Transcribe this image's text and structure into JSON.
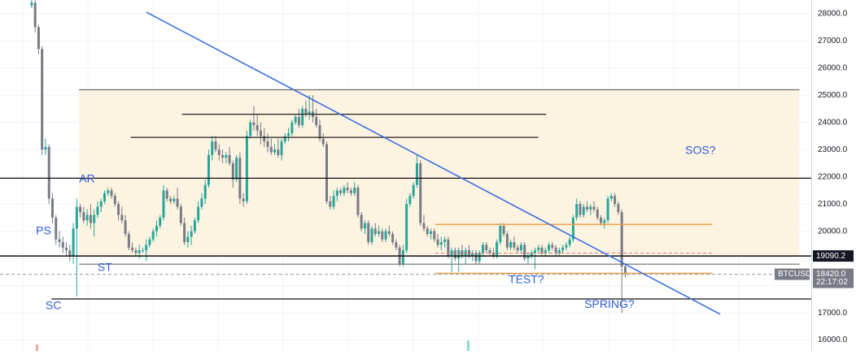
{
  "chart_data": {
    "type": "candlestick",
    "symbol": "BTCUSD",
    "y_axis": {
      "position": "right",
      "range": [
        15600,
        28500
      ],
      "ticks": [
        16000,
        17000,
        18000,
        19000,
        20000,
        21000,
        22000,
        23000,
        24000,
        25000,
        26000,
        27000,
        28000
      ],
      "tick_labels": [
        "16000.0",
        "17000.0",
        "18000.0",
        "19000.0",
        "20000.0",
        "21000.0",
        "22000.0",
        "23000.0",
        "24000.0",
        "25000.0",
        "26000.0",
        "27000.0",
        "28000.0"
      ]
    },
    "x_range": [
      0,
      205
    ],
    "price_tags": [
      {
        "label": "19090.2",
        "value": 19090.2,
        "bg": "#131722",
        "fg": "#ffffff"
      },
      {
        "label": "BTCUSD",
        "value": 18420.0,
        "bg": "#787b86",
        "fg": "#ffffff"
      },
      {
        "label": "18420.0",
        "value": 18420.0,
        "bg": "#787b86",
        "fg": "#ffffff"
      },
      {
        "label": "22:17:02",
        "value": 18120.0,
        "bg": "#787b86",
        "fg": "#ffffff"
      }
    ],
    "trading_range": {
      "x1": 20,
      "x2": 202,
      "high": 25200,
      "low": 19050,
      "color": "#fdf3e1"
    },
    "horizontal_levels": [
      {
        "x1": 20,
        "x2": 202,
        "y": 25200,
        "color": "#6b6b6b",
        "width": 1.2
      },
      {
        "x1": 46,
        "x2": 138,
        "y": 24300,
        "color": "#222222",
        "width": 1.2
      },
      {
        "x1": 33,
        "x2": 136,
        "y": 23450,
        "color": "#222222",
        "width": 1.2
      },
      {
        "x1": 0,
        "x2": 205,
        "y": 21950,
        "color": "#111111",
        "width": 1.3
      },
      {
        "x1": 0,
        "x2": 205,
        "y": 19090,
        "color": "#111111",
        "width": 1.5
      },
      {
        "x1": 20,
        "x2": 202,
        "y": 18790,
        "color": "#6b6b6b",
        "width": 1.2
      },
      {
        "x1": 13,
        "x2": 205,
        "y": 17510,
        "color": "#111111",
        "width": 1.3
      },
      {
        "x1": 110,
        "x2": 180,
        "y": 20250,
        "color": "#f0a04b",
        "width": 1.5
      },
      {
        "x1": 110,
        "x2": 180,
        "y": 18450,
        "color": "#f0a04b",
        "width": 1.5
      }
    ],
    "dashed_levels": [
      {
        "x1": 110,
        "x2": 180,
        "y": 19200,
        "color": "#d08080"
      },
      {
        "x1": 0,
        "x2": 205,
        "y": 18420,
        "color": "#999999"
      }
    ],
    "trendline": {
      "x1": 37,
      "y1": 28050,
      "x2": 182,
      "y2": 16950,
      "color": "#3a6fe0"
    },
    "annotations": [
      {
        "text": "PS",
        "x": 11,
        "y": 20000
      },
      {
        "text": "SC",
        "x": 13.5,
        "y": 17250
      },
      {
        "text": "AR",
        "x": 22,
        "y": 21900
      },
      {
        "text": "ST",
        "x": 26.5,
        "y": 18650
      },
      {
        "text": "SOS?",
        "x": 177,
        "y": 22950
      },
      {
        "text": "TEST?",
        "x": 133,
        "y": 18200
      },
      {
        "text": "SPRING?",
        "x": 154,
        "y": 17300
      }
    ],
    "candles": [
      [
        28300,
        28500,
        28200,
        28400
      ],
      [
        28400,
        28500,
        27300,
        27500
      ],
      [
        27500,
        27600,
        26500,
        26700
      ],
      [
        26700,
        26800,
        22800,
        23000
      ],
      [
        23000,
        23400,
        22800,
        23100
      ],
      [
        23100,
        23200,
        21000,
        21200
      ],
      [
        21200,
        21400,
        20300,
        20500
      ],
      [
        20500,
        20600,
        19500,
        19700
      ],
      [
        19700,
        20000,
        19400,
        19600
      ],
      [
        19600,
        19800,
        19200,
        19400
      ],
      [
        19400,
        19600,
        19100,
        19300
      ],
      [
        19300,
        19500,
        18900,
        19100
      ],
      [
        19100,
        20300,
        18800,
        20100
      ],
      [
        20100,
        21200,
        17600,
        20900
      ],
      [
        20900,
        21000,
        20500,
        20700
      ],
      [
        20700,
        20900,
        20300,
        20400
      ],
      [
        20400,
        20800,
        20200,
        20600
      ],
      [
        20600,
        21000,
        20100,
        20300
      ],
      [
        20300,
        20800,
        19800,
        20600
      ],
      [
        20600,
        21100,
        20500,
        20900
      ],
      [
        20900,
        21200,
        20700,
        21100
      ],
      [
        21100,
        21500,
        21000,
        21400
      ],
      [
        21400,
        21600,
        21300,
        21500
      ],
      [
        21500,
        21600,
        21200,
        21300
      ],
      [
        21300,
        21400,
        20900,
        21000
      ],
      [
        21000,
        21100,
        20400,
        20600
      ],
      [
        20600,
        20900,
        20300,
        20400
      ],
      [
        20400,
        20600,
        19800,
        19900
      ],
      [
        19900,
        20000,
        19300,
        19400
      ],
      [
        19400,
        19600,
        19200,
        19300
      ],
      [
        19300,
        19400,
        19100,
        19200
      ],
      [
        19200,
        19500,
        19000,
        19300
      ],
      [
        19300,
        19400,
        19200,
        19300
      ],
      [
        19300,
        19700,
        18900,
        19500
      ],
      [
        19500,
        19800,
        19400,
        19700
      ],
      [
        19700,
        20100,
        19600,
        20000
      ],
      [
        20000,
        20400,
        19800,
        20200
      ],
      [
        20200,
        20600,
        20100,
        20500
      ],
      [
        20500,
        21700,
        20400,
        21500
      ],
      [
        21500,
        21600,
        21100,
        21200
      ],
      [
        21200,
        21300,
        21000,
        21100
      ],
      [
        21100,
        21300,
        21000,
        21200
      ],
      [
        21200,
        21600,
        20800,
        20900
      ],
      [
        20900,
        21000,
        20200,
        20300
      ],
      [
        20300,
        20500,
        19500,
        19600
      ],
      [
        19600,
        20000,
        19400,
        19800
      ],
      [
        19800,
        20200,
        19500,
        20000
      ],
      [
        20000,
        20500,
        19900,
        20400
      ],
      [
        20400,
        21100,
        20300,
        20900
      ],
      [
        20900,
        21400,
        20800,
        21200
      ],
      [
        21200,
        21900,
        21000,
        21700
      ],
      [
        21700,
        23000,
        21600,
        22800
      ],
      [
        22800,
        23500,
        22600,
        23300
      ],
      [
        23300,
        23500,
        22900,
        23000
      ],
      [
        23000,
        23200,
        22600,
        22800
      ],
      [
        22800,
        23000,
        22500,
        22700
      ],
      [
        22700,
        22900,
        22500,
        22800
      ],
      [
        22800,
        23100,
        22400,
        22500
      ],
      [
        22500,
        22600,
        21600,
        21900
      ],
      [
        21900,
        22800,
        21800,
        22700
      ],
      [
        22700,
        22900,
        21000,
        21200
      ],
      [
        21200,
        21400,
        20900,
        21100
      ],
      [
        21100,
        23700,
        21000,
        23500
      ],
      [
        23500,
        24100,
        23400,
        24000
      ],
      [
        24000,
        24600,
        23700,
        23900
      ],
      [
        23900,
        24300,
        23500,
        23700
      ],
      [
        23700,
        24000,
        23200,
        23500
      ],
      [
        23500,
        23800,
        23100,
        23300
      ],
      [
        23300,
        23600,
        22900,
        23100
      ],
      [
        23100,
        23400,
        22800,
        22900
      ],
      [
        22900,
        23200,
        22800,
        23000
      ],
      [
        23000,
        23400,
        22700,
        22800
      ],
      [
        22800,
        23400,
        22600,
        23300
      ],
      [
        23300,
        23600,
        23200,
        23500
      ],
      [
        23500,
        23800,
        23300,
        23600
      ],
      [
        23600,
        24100,
        23500,
        24000
      ],
      [
        24000,
        24300,
        23900,
        24200
      ],
      [
        24200,
        24500,
        23800,
        23900
      ],
      [
        23900,
        24600,
        23800,
        24500
      ],
      [
        24500,
        24800,
        24200,
        24300
      ],
      [
        24300,
        25000,
        24100,
        24400
      ],
      [
        24400,
        25000,
        24000,
        24200
      ],
      [
        24200,
        24500,
        23800,
        23900
      ],
      [
        23900,
        24100,
        23300,
        23400
      ],
      [
        23400,
        23600,
        23100,
        23200
      ],
      [
        23200,
        23300,
        21000,
        21100
      ],
      [
        21100,
        21300,
        20800,
        20900
      ],
      [
        20900,
        21500,
        20800,
        21300
      ],
      [
        21300,
        21600,
        21100,
        21500
      ],
      [
        21500,
        21600,
        21300,
        21400
      ],
      [
        21400,
        21700,
        21300,
        21600
      ],
      [
        21600,
        21800,
        21400,
        21500
      ],
      [
        21500,
        21600,
        21300,
        21400
      ],
      [
        21400,
        21800,
        21300,
        21600
      ],
      [
        21600,
        21700,
        20500,
        20600
      ],
      [
        20600,
        20700,
        20000,
        20100
      ],
      [
        20100,
        20400,
        19900,
        20300
      ],
      [
        20300,
        20400,
        19500,
        19600
      ],
      [
        19600,
        20200,
        19500,
        20100
      ],
      [
        20100,
        20300,
        19800,
        19900
      ],
      [
        19900,
        20200,
        19800,
        20000
      ],
      [
        20000,
        20100,
        19600,
        19700
      ],
      [
        19700,
        20100,
        19600,
        20000
      ],
      [
        20000,
        20200,
        19800,
        19900
      ],
      [
        19900,
        20000,
        19500,
        19600
      ],
      [
        19600,
        19700,
        19300,
        19400
      ],
      [
        19400,
        19500,
        18700,
        18800
      ],
      [
        18800,
        19500,
        18700,
        19300
      ],
      [
        19300,
        21200,
        19200,
        21000
      ],
      [
        21000,
        21400,
        20900,
        21300
      ],
      [
        21300,
        21800,
        21200,
        21700
      ],
      [
        21700,
        22800,
        21600,
        22500
      ],
      [
        22500,
        22600,
        20200,
        20300
      ],
      [
        20300,
        20600,
        20000,
        20100
      ],
      [
        20100,
        20200,
        19800,
        19900
      ],
      [
        19900,
        20100,
        19700,
        20000
      ],
      [
        20000,
        20100,
        19600,
        19700
      ],
      [
        19700,
        19900,
        19400,
        19500
      ],
      [
        19500,
        19800,
        19300,
        19600
      ],
      [
        19600,
        19800,
        19400,
        19700
      ],
      [
        19700,
        19800,
        19000,
        19100
      ],
      [
        19100,
        19400,
        18500,
        19300
      ],
      [
        19300,
        19400,
        18900,
        19000
      ],
      [
        19000,
        19400,
        18500,
        19300
      ],
      [
        19300,
        19500,
        19000,
        19100
      ],
      [
        19100,
        19400,
        18800,
        19300
      ],
      [
        19300,
        19500,
        19000,
        19100
      ],
      [
        19100,
        19300,
        18900,
        19200
      ],
      [
        19200,
        19300,
        18800,
        18900
      ],
      [
        18900,
        19300,
        18800,
        19200
      ],
      [
        19200,
        19600,
        19100,
        19500
      ],
      [
        19500,
        19600,
        19200,
        19300
      ],
      [
        19300,
        19400,
        19100,
        19200
      ],
      [
        19200,
        19400,
        19000,
        19100
      ],
      [
        19100,
        19700,
        19000,
        19600
      ],
      [
        19600,
        20300,
        19500,
        20200
      ],
      [
        20200,
        20300,
        19800,
        19900
      ],
      [
        19900,
        20000,
        19300,
        19400
      ],
      [
        19400,
        19700,
        19300,
        19600
      ],
      [
        19600,
        19800,
        19300,
        19400
      ],
      [
        19400,
        19500,
        19200,
        19300
      ],
      [
        19300,
        19600,
        19200,
        19500
      ],
      [
        19500,
        19600,
        18900,
        19000
      ],
      [
        19000,
        19200,
        18800,
        19100
      ],
      [
        19100,
        19300,
        19000,
        19200
      ],
      [
        19200,
        19400,
        18600,
        19300
      ],
      [
        19300,
        19500,
        19200,
        19400
      ],
      [
        19400,
        19500,
        19100,
        19200
      ],
      [
        19200,
        19400,
        19100,
        19300
      ],
      [
        19300,
        19600,
        19200,
        19500
      ],
      [
        19500,
        19600,
        19300,
        19400
      ],
      [
        19400,
        19500,
        19100,
        19200
      ],
      [
        19200,
        19400,
        19100,
        19300
      ],
      [
        19300,
        19500,
        19200,
        19400
      ],
      [
        19400,
        19600,
        19300,
        19500
      ],
      [
        19500,
        19800,
        19400,
        19700
      ],
      [
        19700,
        20600,
        19600,
        20500
      ],
      [
        20500,
        21200,
        20400,
        21000
      ],
      [
        21000,
        21100,
        20500,
        20600
      ],
      [
        20600,
        21000,
        20500,
        20900
      ],
      [
        20900,
        21100,
        20700,
        20800
      ],
      [
        20800,
        21000,
        20600,
        20900
      ],
      [
        20900,
        21100,
        20700,
        20800
      ],
      [
        20800,
        20900,
        20400,
        20500
      ],
      [
        20500,
        20600,
        20200,
        20300
      ],
      [
        20300,
        20500,
        20100,
        20400
      ],
      [
        20400,
        21300,
        20300,
        21200
      ],
      [
        21200,
        21400,
        21100,
        21300
      ],
      [
        21300,
        21400,
        20900,
        21000
      ],
      [
        21000,
        21100,
        20600,
        20700
      ],
      [
        20700,
        20800,
        17000,
        18700
      ],
      [
        18700,
        18800,
        18300,
        18420
      ]
    ],
    "candle_x_range": [
      8,
      158
    ],
    "up_color": "#26a69a",
    "down_color": "#787b86",
    "label_color": "#2d5dd8"
  }
}
